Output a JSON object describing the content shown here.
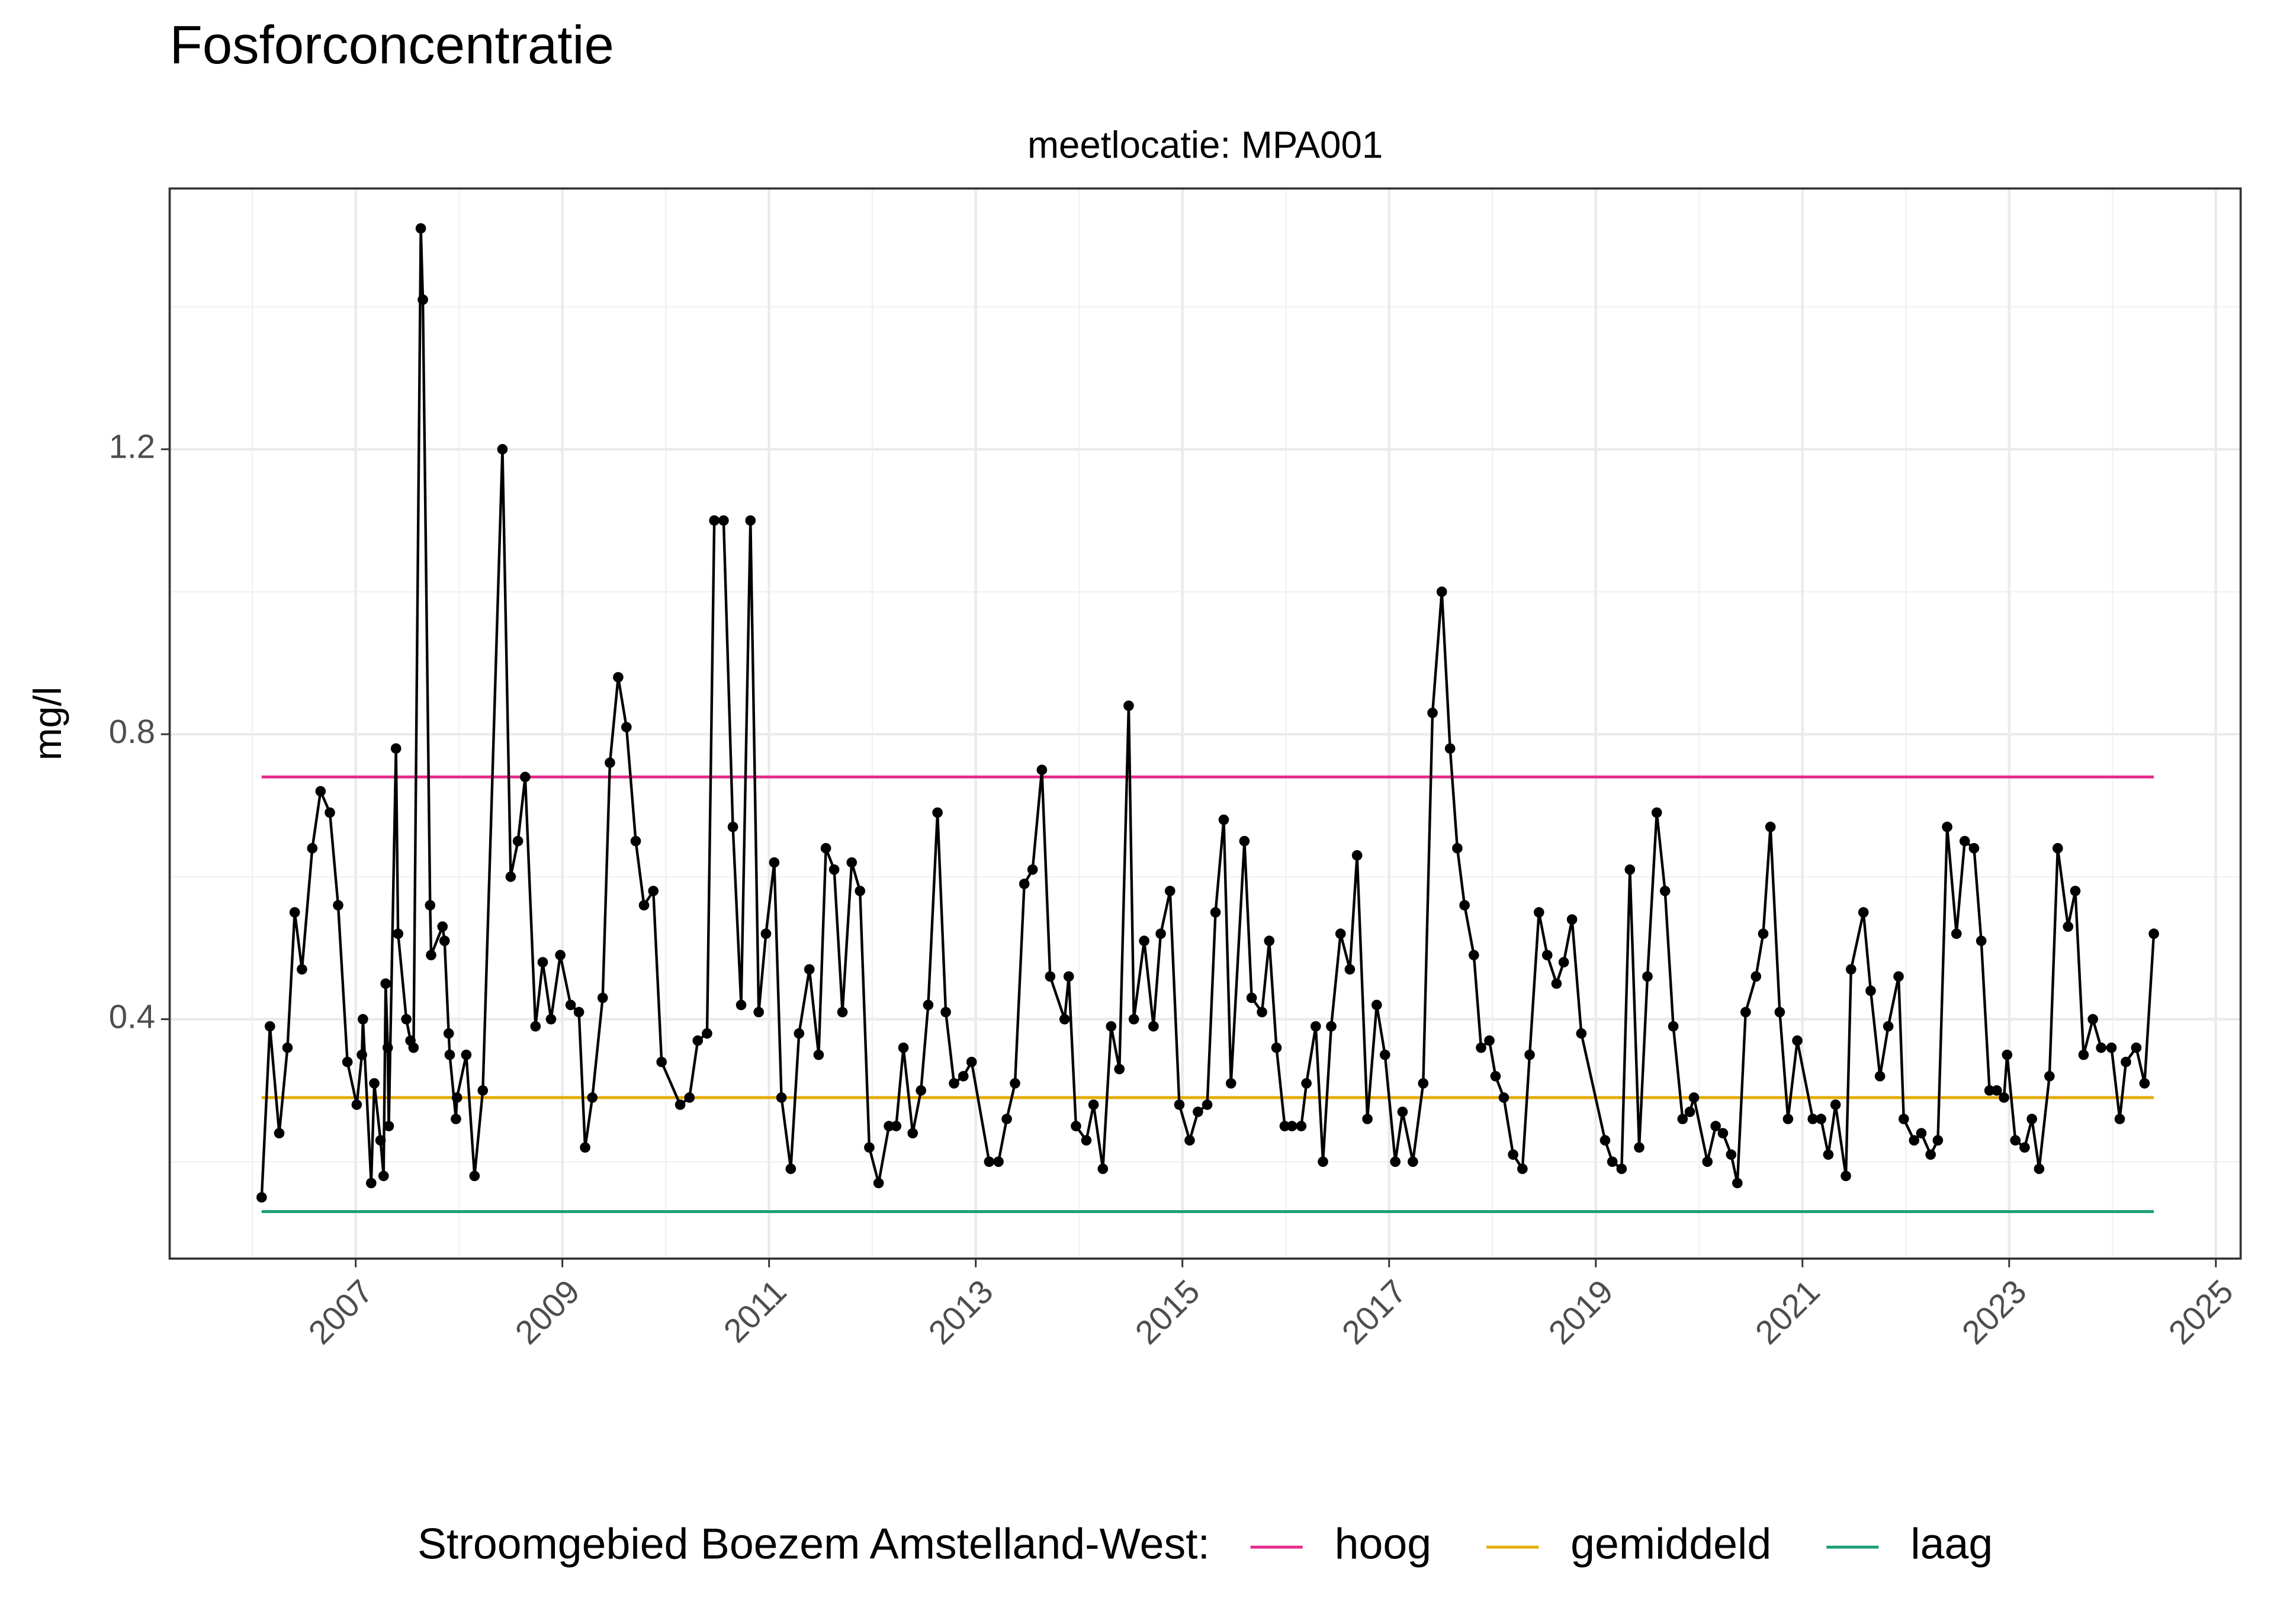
{
  "chart_data": {
    "type": "line",
    "title": "Fosforconcentratie",
    "subtitle": "meetlocatie: MPA001",
    "y_label": "mg/l",
    "color": "#000000",
    "x": [
      2006.09,
      2006.17,
      2006.26,
      2006.34,
      2006.41,
      2006.48,
      2006.58,
      2006.66,
      2006.75,
      2006.83,
      2006.92,
      2007.01,
      2007.06,
      2007.07,
      2007.15,
      2007.18,
      2007.24,
      2007.27,
      2007.29,
      2007.31,
      2007.32,
      2007.39,
      2007.41,
      2007.49,
      2007.53,
      2007.56,
      2007.63,
      2007.65,
      2007.72,
      2007.73,
      2007.84,
      2007.86,
      2007.9,
      2007.91,
      2007.97,
      2007.98,
      2008.07,
      2008.15,
      2008.23,
      2008.42,
      2008.5,
      2008.57,
      2008.64,
      2008.74,
      2008.81,
      2008.89,
      2008.98,
      2009.08,
      2009.16,
      2009.22,
      2009.29,
      2009.39,
      2009.46,
      2009.54,
      2009.62,
      2009.71,
      2009.79,
      2009.88,
      2009.96,
      2010.14,
      2010.23,
      2010.31,
      2010.4,
      2010.47,
      2010.56,
      2010.65,
      2010.73,
      2010.82,
      2010.9,
      2010.97,
      2011.05,
      2011.12,
      2011.21,
      2011.29,
      2011.39,
      2011.48,
      2011.55,
      2011.63,
      2011.71,
      2011.8,
      2011.88,
      2011.97,
      2012.06,
      2012.16,
      2012.23,
      2012.3,
      2012.39,
      2012.47,
      2012.54,
      2012.63,
      2012.71,
      2012.79,
      2012.88,
      2012.96,
      2013.13,
      2013.22,
      2013.3,
      2013.38,
      2013.47,
      2013.55,
      2013.64,
      2013.72,
      2013.86,
      2013.9,
      2013.97,
      2014.07,
      2014.14,
      2014.23,
      2014.31,
      2014.39,
      2014.48,
      2014.53,
      2014.63,
      2014.72,
      2014.79,
      2014.88,
      2014.97,
      2015.07,
      2015.15,
      2015.24,
      2015.32,
      2015.4,
      2015.47,
      2015.6,
      2015.67,
      2015.77,
      2015.84,
      2015.91,
      2015.99,
      2016.06,
      2016.15,
      2016.2,
      2016.29,
      2016.36,
      2016.44,
      2016.53,
      2016.62,
      2016.69,
      2016.79,
      2016.88,
      2016.96,
      2017.06,
      2017.13,
      2017.23,
      2017.33,
      2017.42,
      2017.51,
      2017.59,
      2017.66,
      2017.73,
      2017.82,
      2017.89,
      2017.97,
      2018.03,
      2018.11,
      2018.2,
      2018.29,
      2018.36,
      2018.45,
      2018.53,
      2018.62,
      2018.69,
      2018.77,
      2018.86,
      2019.09,
      2019.16,
      2019.25,
      2019.33,
      2019.42,
      2019.5,
      2019.59,
      2019.67,
      2019.75,
      2019.84,
      2019.91,
      2019.95,
      2020.08,
      2020.16,
      2020.23,
      2020.31,
      2020.37,
      2020.45,
      2020.55,
      2020.62,
      2020.69,
      2020.78,
      2020.86,
      2020.95,
      2021.1,
      2021.18,
      2021.25,
      2021.32,
      2021.42,
      2021.47,
      2021.59,
      2021.66,
      2021.75,
      2021.83,
      2021.93,
      2021.98,
      2022.08,
      2022.15,
      2022.24,
      2022.31,
      2022.4,
      2022.49,
      2022.57,
      2022.66,
      2022.73,
      2022.81,
      2022.88,
      2022.95,
      2022.98,
      2023.06,
      2023.15,
      2023.22,
      2023.29,
      2023.39,
      2023.47,
      2023.57,
      2023.64,
      2023.72,
      2023.81,
      2023.89,
      2023.99,
      2024.07,
      2024.13,
      2024.23,
      2024.31,
      2024.4
    ],
    "values": [
      0.15,
      0.39,
      0.24,
      0.36,
      0.55,
      0.47,
      0.64,
      0.72,
      0.69,
      0.56,
      0.34,
      0.28,
      0.35,
      0.4,
      0.17,
      0.31,
      0.23,
      0.18,
      0.45,
      0.36,
      0.25,
      0.78,
      0.52,
      0.4,
      0.37,
      0.36,
      1.51,
      1.41,
      0.56,
      0.49,
      0.53,
      0.51,
      0.38,
      0.35,
      0.26,
      0.29,
      0.35,
      0.18,
      0.3,
      1.2,
      0.6,
      0.65,
      0.74,
      0.39,
      0.48,
      0.4,
      0.49,
      0.42,
      0.41,
      0.22,
      0.29,
      0.43,
      0.76,
      0.88,
      0.81,
      0.65,
      0.56,
      0.58,
      0.34,
      0.28,
      0.29,
      0.37,
      0.38,
      1.1,
      1.1,
      0.67,
      0.42,
      1.1,
      0.41,
      0.52,
      0.62,
      0.29,
      0.19,
      0.38,
      0.47,
      0.35,
      0.64,
      0.61,
      0.41,
      0.62,
      0.58,
      0.22,
      0.17,
      0.25,
      0.25,
      0.36,
      0.24,
      0.3,
      0.42,
      0.69,
      0.41,
      0.31,
      0.32,
      0.34,
      0.2,
      0.2,
      0.26,
      0.31,
      0.59,
      0.61,
      0.75,
      0.46,
      0.4,
      0.46,
      0.25,
      0.23,
      0.28,
      0.19,
      0.39,
      0.33,
      0.84,
      0.4,
      0.51,
      0.39,
      0.52,
      0.58,
      0.28,
      0.23,
      0.27,
      0.28,
      0.55,
      0.68,
      0.31,
      0.65,
      0.43,
      0.41,
      0.51,
      0.36,
      0.25,
      0.25,
      0.25,
      0.31,
      0.39,
      0.2,
      0.39,
      0.52,
      0.47,
      0.63,
      0.26,
      0.42,
      0.35,
      0.2,
      0.27,
      0.2,
      0.31,
      0.83,
      1.0,
      0.78,
      0.64,
      0.56,
      0.49,
      0.36,
      0.37,
      0.32,
      0.29,
      0.21,
      0.19,
      0.35,
      0.55,
      0.49,
      0.45,
      0.48,
      0.54,
      0.38,
      0.23,
      0.2,
      0.19,
      0.61,
      0.22,
      0.46,
      0.69,
      0.58,
      0.39,
      0.26,
      0.27,
      0.29,
      0.2,
      0.25,
      0.24,
      0.21,
      0.17,
      0.41,
      0.46,
      0.52,
      0.67,
      0.41,
      0.26,
      0.37,
      0.26,
      0.26,
      0.21,
      0.28,
      0.18,
      0.47,
      0.55,
      0.44,
      0.32,
      0.39,
      0.46,
      0.26,
      0.23,
      0.24,
      0.21,
      0.23,
      0.67,
      0.52,
      0.65,
      0.64,
      0.51,
      0.3,
      0.3,
      0.29,
      0.35,
      0.23,
      0.22,
      0.26,
      0.19,
      0.32,
      0.64,
      0.53,
      0.58,
      0.35,
      0.4,
      0.36,
      0.36,
      0.26,
      0.34,
      0.36,
      0.31,
      0.52
    ],
    "reference_lines": [
      {
        "name": "hoog",
        "color": "#e7298a",
        "value": 0.74,
        "x": [
          2006.09,
          2024.4
        ]
      },
      {
        "name": "gemiddeld",
        "color": "#e6ab02",
        "value": 0.29,
        "x": [
          2006.09,
          2024.4
        ]
      },
      {
        "name": "laag",
        "color": "#1b9e77",
        "value": 0.13,
        "x": [
          2006.09,
          2024.4
        ]
      }
    ],
    "legend_title": "Stroomgebied Boezem Amstelland-West:",
    "legend_position": "bottom",
    "xlim": [
      2005.2,
      2025.24
    ],
    "ylim": [
      0.064,
      1.566
    ],
    "xticks": [
      2007,
      2009,
      2011,
      2013,
      2015,
      2017,
      2019,
      2021,
      2023,
      2025
    ],
    "yticks": [
      0.4,
      0.8,
      1.2
    ],
    "xminor": [
      2006,
      2008,
      2010,
      2012,
      2014,
      2016,
      2018,
      2020,
      2022,
      2024
    ],
    "yminor": [
      0.2,
      0.6,
      1.0,
      1.4
    ],
    "grid": true
  }
}
